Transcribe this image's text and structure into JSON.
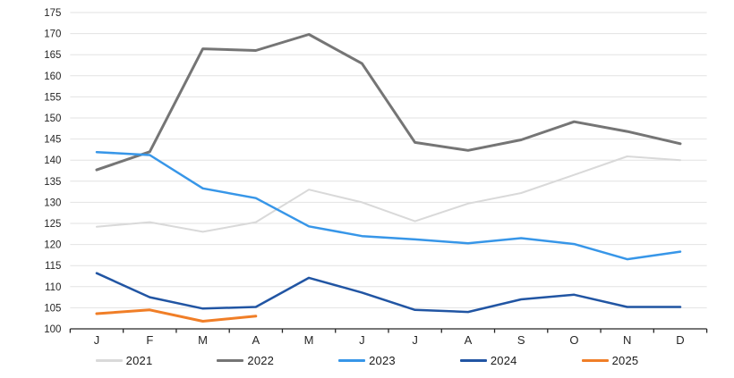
{
  "chart_data": {
    "type": "line",
    "title": "",
    "xlabel": "",
    "ylabel": "",
    "categories": [
      "J",
      "F",
      "M",
      "A",
      "M",
      "J",
      "J",
      "A",
      "S",
      "O",
      "N",
      "D"
    ],
    "y_axis": {
      "min": 100,
      "max": 175,
      "step": 5,
      "tick_labels": [
        "100",
        "105",
        "110",
        "115",
        "120",
        "125",
        "130",
        "135",
        "140",
        "145",
        "150",
        "155",
        "160",
        "165",
        "170",
        "175"
      ]
    },
    "grid": true,
    "legend_position": "bottom",
    "series": [
      {
        "name": "2021",
        "color": "#D9D9D9",
        "values": [
          124.2,
          125.3,
          123.0,
          125.3,
          133.0,
          130.0,
          125.5,
          129.7,
          132.2,
          136.5,
          140.9,
          140.0
        ]
      },
      {
        "name": "2022",
        "color": "#757575",
        "values": [
          137.7,
          142.0,
          166.4,
          166.0,
          169.8,
          162.9,
          144.2,
          142.3,
          144.8,
          149.1,
          146.8,
          143.9
        ]
      },
      {
        "name": "2023",
        "color": "#3796E8",
        "values": [
          141.9,
          141.2,
          133.3,
          131.0,
          124.3,
          122.0,
          121.2,
          120.3,
          121.5,
          120.1,
          116.5,
          118.3
        ]
      },
      {
        "name": "2024",
        "color": "#2155A3",
        "values": [
          113.2,
          107.5,
          104.8,
          105.2,
          112.1,
          108.6,
          104.5,
          104.0,
          107.0,
          108.1,
          105.2,
          105.2
        ]
      },
      {
        "name": "2025",
        "color": "#F07E27",
        "values": [
          103.6,
          104.5,
          101.8,
          103.0
        ]
      }
    ],
    "colors": {
      "gridline": "#E2E2E2",
      "axis_line": "#262626",
      "tick_text": "#262626"
    }
  }
}
